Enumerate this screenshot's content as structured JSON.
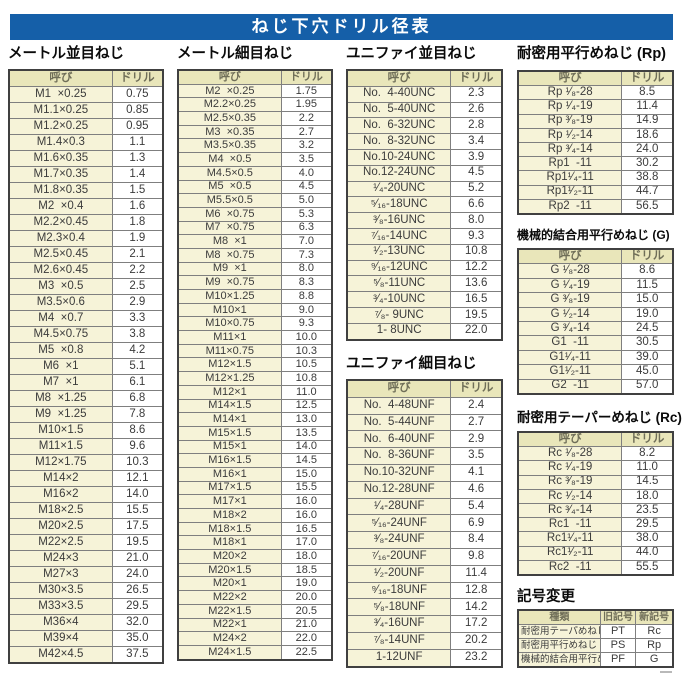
{
  "title": "ねじ下穴ドリル径表",
  "colors": {
    "accent_blue": "#155fa8",
    "table_header_bg": "#e9e6ba",
    "name_cell_bg": "#f6f3d8",
    "border": "#404040"
  },
  "sections": {
    "metric_coarse": {
      "title": "メートル並目ねじ",
      "columns": [
        "呼び",
        "ドリル"
      ],
      "rows": [
        [
          "M1  ×0.25",
          "0.75"
        ],
        [
          "M1.1×0.25",
          "0.85"
        ],
        [
          "M1.2×0.25",
          "0.95"
        ],
        [
          "M1.4×0.3",
          "1.1"
        ],
        [
          "M1.6×0.35",
          "1.3"
        ],
        [
          "M1.7×0.35",
          "1.4"
        ],
        [
          "M1.8×0.35",
          "1.5"
        ],
        [
          "M2  ×0.4",
          "1.6"
        ],
        [
          "M2.2×0.45",
          "1.8"
        ],
        [
          "M2.3×0.4",
          "1.9"
        ],
        [
          "M2.5×0.45",
          "2.1"
        ],
        [
          "M2.6×0.45",
          "2.2"
        ],
        [
          "M3  ×0.5",
          "2.5"
        ],
        [
          "M3.5×0.6",
          "2.9"
        ],
        [
          "M4  ×0.7",
          "3.3"
        ],
        [
          "M4.5×0.75",
          "3.8"
        ],
        [
          "M5  ×0.8",
          "4.2"
        ],
        [
          "M6  ×1",
          "5.1"
        ],
        [
          "M7  ×1",
          "6.1"
        ],
        [
          "M8  ×1.25",
          "6.8"
        ],
        [
          "M9  ×1.25",
          "7.8"
        ],
        [
          "M10×1.5",
          "8.6"
        ],
        [
          "M11×1.5",
          "9.6"
        ],
        [
          "M12×1.75",
          "10.3"
        ],
        [
          "M14×2",
          "12.1"
        ],
        [
          "M16×2",
          "14.0"
        ],
        [
          "M18×2.5",
          "15.5"
        ],
        [
          "M20×2.5",
          "17.5"
        ],
        [
          "M22×2.5",
          "19.5"
        ],
        [
          "M24×3",
          "21.0"
        ],
        [
          "M27×3",
          "24.0"
        ],
        [
          "M30×3.5",
          "26.5"
        ],
        [
          "M33×3.5",
          "29.5"
        ],
        [
          "M36×4",
          "32.0"
        ],
        [
          "M39×4",
          "35.0"
        ],
        [
          "M42×4.5",
          "37.5"
        ]
      ]
    },
    "metric_fine": {
      "title": "メートル細目ねじ",
      "columns": [
        "呼び",
        "ドリル"
      ],
      "rows": [
        [
          "M2  ×0.25",
          "1.75"
        ],
        [
          "M2.2×0.25",
          "1.95"
        ],
        [
          "M2.5×0.35",
          "2.2"
        ],
        [
          "M3  ×0.35",
          "2.7"
        ],
        [
          "M3.5×0.35",
          "3.2"
        ],
        [
          "M4  ×0.5",
          "3.5"
        ],
        [
          "M4.5×0.5",
          "4.0"
        ],
        [
          "M5  ×0.5",
          "4.5"
        ],
        [
          "M5.5×0.5",
          "5.0"
        ],
        [
          "M6  ×0.75",
          "5.3"
        ],
        [
          "M7  ×0.75",
          "6.3"
        ],
        [
          "M8  ×1",
          "7.0"
        ],
        [
          "M8  ×0.75",
          "7.3"
        ],
        [
          "M9  ×1",
          "8.0"
        ],
        [
          "M9  ×0.75",
          "8.3"
        ],
        [
          "M10×1.25",
          "8.8"
        ],
        [
          "M10×1",
          "9.0"
        ],
        [
          "M10×0.75",
          "9.3"
        ],
        [
          "M11×1",
          "10.0"
        ],
        [
          "M11×0.75",
          "10.3"
        ],
        [
          "M12×1.5",
          "10.5"
        ],
        [
          "M12×1.25",
          "10.8"
        ],
        [
          "M12×1",
          "11.0"
        ],
        [
          "M14×1.5",
          "12.5"
        ],
        [
          "M14×1",
          "13.0"
        ],
        [
          "M15×1.5",
          "13.5"
        ],
        [
          "M15×1",
          "14.0"
        ],
        [
          "M16×1.5",
          "14.5"
        ],
        [
          "M16×1",
          "15.0"
        ],
        [
          "M17×1.5",
          "15.5"
        ],
        [
          "M17×1",
          "16.0"
        ],
        [
          "M18×2",
          "16.0"
        ],
        [
          "M18×1.5",
          "16.5"
        ],
        [
          "M18×1",
          "17.0"
        ],
        [
          "M20×2",
          "18.0"
        ],
        [
          "M20×1.5",
          "18.5"
        ],
        [
          "M20×1",
          "19.0"
        ],
        [
          "M22×2",
          "20.0"
        ],
        [
          "M22×1.5",
          "20.5"
        ],
        [
          "M22×1",
          "21.0"
        ],
        [
          "M24×2",
          "22.0"
        ],
        [
          "M24×1.5",
          "22.5"
        ]
      ]
    },
    "unified_coarse": {
      "title": "ユニファイ並目ねじ",
      "columns": [
        "呼び",
        "ドリル"
      ],
      "rows": [
        [
          "No.  4-40UNC",
          "2.3"
        ],
        [
          "No.  5-40UNC",
          "2.6"
        ],
        [
          "No.  6-32UNC",
          "2.8"
        ],
        [
          "No.  8-32UNC",
          "3.4"
        ],
        [
          "No.10-24UNC",
          "3.9"
        ],
        [
          "No.12-24UNC",
          "4.5"
        ],
        [
          "¹⁄₄-20UNC",
          "5.2"
        ],
        [
          "⁵⁄₁₆-18UNC",
          "6.6"
        ],
        [
          "³⁄₈-16UNC",
          "8.0"
        ],
        [
          "⁷⁄₁₆-14UNC",
          "9.3"
        ],
        [
          "¹⁄₂-13UNC",
          "10.8"
        ],
        [
          "⁹⁄₁₆-12UNC",
          "12.2"
        ],
        [
          "⁵⁄₈-11UNC",
          "13.6"
        ],
        [
          "³⁄₄-10UNC",
          "16.5"
        ],
        [
          "⁷⁄₈- 9UNC",
          "19.5"
        ],
        [
          "1- 8UNC",
          "22.0"
        ]
      ]
    },
    "unified_fine": {
      "title": "ユニファイ細目ねじ",
      "columns": [
        "呼び",
        "ドリル"
      ],
      "rows": [
        [
          "No.  4-48UNF",
          "2.4"
        ],
        [
          "No.  5-44UNF",
          "2.7"
        ],
        [
          "No.  6-40UNF",
          "2.9"
        ],
        [
          "No.  8-36UNF",
          "3.5"
        ],
        [
          "No.10-32UNF",
          "4.1"
        ],
        [
          "No.12-28UNF",
          "4.6"
        ],
        [
          "¹⁄₄-28UNF",
          "5.4"
        ],
        [
          "⁵⁄₁₆-24UNF",
          "6.9"
        ],
        [
          "³⁄₈-24UNF",
          "8.4"
        ],
        [
          "⁷⁄₁₆-20UNF",
          "9.8"
        ],
        [
          "¹⁄₂-20UNF",
          "11.4"
        ],
        [
          "⁹⁄₁₆-18UNF",
          "12.8"
        ],
        [
          "⁵⁄₈-18UNF",
          "14.2"
        ],
        [
          "³⁄₄-16UNF",
          "17.2"
        ],
        [
          "⁷⁄₈-14UNF",
          "20.2"
        ],
        [
          "1-12UNF",
          "23.2"
        ]
      ]
    },
    "rp": {
      "title": "耐密用平行めねじ (Rp)",
      "columns": [
        "呼び",
        "ドリル"
      ],
      "rows": [
        [
          "Rp ¹⁄₈-28",
          "8.5"
        ],
        [
          "Rp ¹⁄₄-19",
          "11.4"
        ],
        [
          "Rp ³⁄₈-19",
          "14.9"
        ],
        [
          "Rp ¹⁄₂-14",
          "18.6"
        ],
        [
          "Rp ³⁄₄-14",
          "24.0"
        ],
        [
          "Rp1  -11",
          "30.2"
        ],
        [
          "Rp1¹⁄₄-11",
          "38.8"
        ],
        [
          "Rp1¹⁄₂-11",
          "44.7"
        ],
        [
          "Rp2  -11",
          "56.5"
        ]
      ]
    },
    "g": {
      "title": "機械的結合用平行めねじ (G)",
      "columns": [
        "呼び",
        "ドリル"
      ],
      "rows": [
        [
          "G ¹⁄₈-28",
          "8.6"
        ],
        [
          "G ¹⁄₄-19",
          "11.5"
        ],
        [
          "G ³⁄₈-19",
          "15.0"
        ],
        [
          "G ¹⁄₂-14",
          "19.0"
        ],
        [
          "G ³⁄₄-14",
          "24.5"
        ],
        [
          "G1  -11",
          "30.5"
        ],
        [
          "G1¹⁄₄-11",
          "39.0"
        ],
        [
          "G1¹⁄₂-11",
          "45.0"
        ],
        [
          "G2  -11",
          "57.0"
        ]
      ]
    },
    "rc": {
      "title": "耐密用テーパーめねじ (Rc)",
      "columns": [
        "呼び",
        "ドリル"
      ],
      "rows": [
        [
          "Rc ¹⁄₈-28",
          "8.2"
        ],
        [
          "Rc ¹⁄₄-19",
          "11.0"
        ],
        [
          "Rc ³⁄₈-19",
          "14.5"
        ],
        [
          "Rc ¹⁄₂-14",
          "18.0"
        ],
        [
          "Rc ³⁄₄-14",
          "23.5"
        ],
        [
          "Rc1  -11",
          "29.5"
        ],
        [
          "Rc1¹⁄₄-11",
          "38.0"
        ],
        [
          "Rc1¹⁄₂-11",
          "44.0"
        ],
        [
          "Rc2  -11",
          "55.5"
        ]
      ]
    },
    "symbol_change": {
      "title": "記号変更",
      "columns": [
        "種類",
        "旧記号",
        "新記号"
      ],
      "rows": [
        [
          "耐密用テーパめねじ",
          "PT",
          "Rc"
        ],
        [
          "耐密用平行めねじ",
          "PS",
          "Rp"
        ],
        [
          "機械的結合用平行めねじ",
          "PF",
          "G"
        ]
      ]
    }
  }
}
